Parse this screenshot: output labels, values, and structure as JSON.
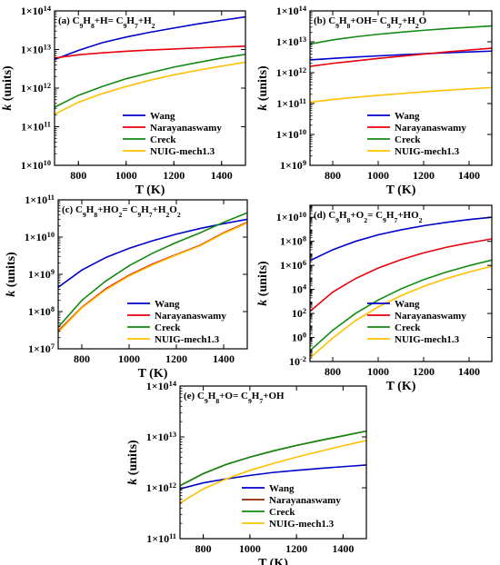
{
  "chart_data": [
    {
      "type": "line",
      "title": "(a) C9H8+H= C9H7+H2",
      "title_parts": [
        "(a) C",
        "9",
        "H",
        "8",
        "+H= C",
        "9",
        "H",
        "7",
        "+H",
        "2"
      ],
      "xlabel": "T (K)",
      "ylabel": "k (units)",
      "ylabel_parts": [
        "k",
        " (units)"
      ],
      "xlim": [
        700,
        1500
      ],
      "ylim": [
        10000000000.0,
        100000000000000.0
      ],
      "yscale": "log",
      "xticks": [
        800,
        1000,
        1200,
        1400
      ],
      "xtick_labels": [
        "800",
        "1000",
        "1200",
        "1400"
      ],
      "yticks": [
        10000000000.0,
        100000000000.0,
        1000000000000.0,
        10000000000000.0,
        100000000000000.0
      ],
      "ytick_labels": [
        [
          "1×10",
          "10"
        ],
        [
          "1×10",
          "11"
        ],
        [
          "1×10",
          "12"
        ],
        [
          "1×10",
          "13"
        ],
        [
          "1×10",
          "14"
        ]
      ],
      "legend_position": "lower-right",
      "grid": false,
      "series": [
        {
          "name": "Wang",
          "color": "#0000cc",
          "x": [
            700,
            800,
            900,
            1000,
            1100,
            1200,
            1300,
            1400,
            1500
          ],
          "y": [
            5500000000000.0,
            9500000000000.0,
            15000000000000.0,
            21000000000000.0,
            28000000000000.0,
            36000000000000.0,
            46000000000000.0,
            57000000000000.0,
            70000000000000.0
          ]
        },
        {
          "name": "Narayanaswamy",
          "color": "#e8000b",
          "x": [
            700,
            800,
            900,
            1000,
            1100,
            1200,
            1300,
            1400,
            1500
          ],
          "y": [
            6000000000000.0,
            7300000000000.0,
            8200000000000.0,
            9000000000000.0,
            9700000000000.0,
            10300000000000.0,
            11000000000000.0,
            11600000000000.0,
            12200000000000.0
          ]
        },
        {
          "name": "Creck",
          "color": "#128a12",
          "x": [
            700,
            800,
            900,
            1000,
            1100,
            1200,
            1300,
            1400,
            1500
          ],
          "y": [
            320000000000.0,
            650000000000.0,
            1100000000000.0,
            1750000000000.0,
            2500000000000.0,
            3500000000000.0,
            4600000000000.0,
            6000000000000.0,
            7500000000000.0
          ]
        },
        {
          "name": "NUIG-mech1.3",
          "color": "#ffc000",
          "x": [
            700,
            800,
            900,
            1000,
            1100,
            1200,
            1300,
            1400,
            1500
          ],
          "y": [
            210000000000.0,
            430000000000.0,
            720000000000.0,
            1100000000000.0,
            1600000000000.0,
            2200000000000.0,
            2900000000000.0,
            3700000000000.0,
            4700000000000.0
          ]
        }
      ]
    },
    {
      "type": "line",
      "title": "(b) C9H8+OH= C9H7+H2O",
      "title_parts": [
        "(b) C",
        "9",
        "H",
        "8",
        "+OH= C",
        "9",
        "H",
        "7",
        "+H",
        "2",
        "O"
      ],
      "xlabel": "T (K)",
      "ylabel": "k (units)",
      "ylabel_parts": [
        "k",
        " (units)"
      ],
      "xlim": [
        700,
        1500
      ],
      "ylim": [
        1000000000.0,
        100000000000000.0
      ],
      "yscale": "log",
      "xticks": [
        800,
        1000,
        1200,
        1400
      ],
      "xtick_labels": [
        "800",
        "1000",
        "1200",
        "1400"
      ],
      "yticks": [
        1000000000.0,
        10000000000.0,
        100000000000.0,
        1000000000000.0,
        10000000000000.0,
        100000000000000.0
      ],
      "ytick_labels": [
        [
          "1×10",
          "9"
        ],
        [
          "1×10",
          "10"
        ],
        [
          "1×10",
          "11"
        ],
        [
          "1×10",
          "12"
        ],
        [
          "1×10",
          "13"
        ],
        [
          "1×10",
          "14"
        ]
      ],
      "legend_position": "lower-right",
      "grid": false,
      "series": [
        {
          "name": "Wang",
          "color": "#0000cc",
          "x": [
            700,
            800,
            900,
            1000,
            1100,
            1200,
            1300,
            1400,
            1500
          ],
          "y": [
            2600000000000.0,
            2900000000000.0,
            3200000000000.0,
            3500000000000.0,
            3800000000000.0,
            4100000000000.0,
            4400000000000.0,
            4700000000000.0,
            5000000000000.0
          ]
        },
        {
          "name": "Narayanaswamy",
          "color": "#e8000b",
          "x": [
            700,
            800,
            900,
            1000,
            1100,
            1200,
            1300,
            1400,
            1500
          ],
          "y": [
            1600000000000.0,
            2000000000000.0,
            2400000000000.0,
            2900000000000.0,
            3400000000000.0,
            4000000000000.0,
            4700000000000.0,
            5400000000000.0,
            6200000000000.0
          ]
        },
        {
          "name": "Creck",
          "color": "#128a12",
          "x": [
            700,
            800,
            900,
            1000,
            1100,
            1200,
            1300,
            1400,
            1500
          ],
          "y": [
            8500000000000.0,
            11500000000000.0,
            14500000000000.0,
            17500000000000.0,
            20500000000000.0,
            23500000000000.0,
            26500000000000.0,
            29500000000000.0,
            32500000000000.0
          ]
        },
        {
          "name": "NUIG-mech1.3",
          "color": "#ffc000",
          "x": [
            700,
            800,
            900,
            1000,
            1100,
            1200,
            1300,
            1400,
            1500
          ],
          "y": [
            110000000000.0,
            135000000000.0,
            160000000000.0,
            185000000000.0,
            210000000000.0,
            240000000000.0,
            270000000000.0,
            300000000000.0,
            330000000000.0
          ]
        }
      ]
    },
    {
      "type": "line",
      "title": "(c) C9H8+HO2= C9H7+H2O2",
      "title_parts": [
        "(c) C",
        "9",
        "H",
        "8",
        "+HO",
        "2",
        "= C",
        "9",
        "H",
        "7",
        "+H",
        "2",
        "O",
        "2"
      ],
      "xlabel": "T (K)",
      "ylabel": "k (units)",
      "ylabel_parts": [
        "k",
        " (units)"
      ],
      "xlim": [
        700,
        1500
      ],
      "ylim": [
        10000000.0,
        100000000000.0
      ],
      "yscale": "log",
      "xticks": [
        800,
        1000,
        1200,
        1400
      ],
      "xtick_labels": [
        "800",
        "1000",
        "1200",
        "1400"
      ],
      "yticks": [
        10000000.0,
        100000000.0,
        1000000000.0,
        10000000000.0,
        100000000000.0
      ],
      "ytick_labels": [
        [
          "1×10",
          "7"
        ],
        [
          "1×10",
          "8"
        ],
        [
          "1×10",
          "9"
        ],
        [
          "1×10",
          "10"
        ],
        [
          "1×10",
          "11"
        ]
      ],
      "legend_position": "lower-right",
      "grid": false,
      "series": [
        {
          "name": "Wang",
          "color": "#0000cc",
          "x": [
            700,
            800,
            900,
            1000,
            1100,
            1200,
            1300,
            1400,
            1500
          ],
          "y": [
            450000000.0,
            1300000000.0,
            2800000000.0,
            5000000000.0,
            8000000000.0,
            12000000000.0,
            17000000000.0,
            23000000000.0,
            30000000000.0
          ]
        },
        {
          "name": "Narayanaswamy",
          "color": "#e8000b",
          "x": [
            700,
            800,
            900,
            1000,
            1100,
            1200,
            1300,
            1400,
            1500
          ],
          "y": [
            30000000.0,
            130000000.0,
            400000000.0,
            950000000.0,
            1900000000.0,
            3400000000.0,
            6000000000.0,
            13000000000.0,
            25000000000.0
          ]
        },
        {
          "name": "Creck",
          "color": "#128a12",
          "x": [
            700,
            800,
            900,
            1000,
            1100,
            1200,
            1300,
            1400,
            1500
          ],
          "y": [
            38000000.0,
            200000000.0,
            650000000.0,
            1700000000.0,
            3700000000.0,
            7200000000.0,
            13000000000.0,
            25000000000.0,
            45000000000.0
          ]
        },
        {
          "name": "NUIG-mech1.3",
          "color": "#ffc000",
          "x": [
            700,
            800,
            900,
            1000,
            1100,
            1200,
            1300,
            1400,
            1500
          ],
          "y": [
            28000000.0,
            125000000.0,
            380000000.0,
            900000000.0,
            1800000000.0,
            3300000000.0,
            5800000000.0,
            12500000000.0,
            24000000000.0
          ]
        }
      ]
    },
    {
      "type": "line",
      "title": "(d) C9H8+O2= C9H7+HO2",
      "title_parts": [
        "(d) C",
        "9",
        "H",
        "8",
        "+O",
        "2",
        "= C",
        "9",
        "H",
        "7",
        "+HO",
        "2"
      ],
      "xlabel": "T (K)",
      "ylabel": "k (units)",
      "ylabel_parts": [
        "k",
        " (units)"
      ],
      "xlim": [
        700,
        1500
      ],
      "ylim": [
        0.01,
        100000000000.0
      ],
      "yscale": "log",
      "xticks": [
        800,
        1000,
        1200,
        1400
      ],
      "xtick_labels": [
        "800",
        "1000",
        "1200",
        "1400"
      ],
      "yticks": [
        0.01,
        1,
        100.0,
        10000.0,
        1000000.0,
        100000000.0,
        10000000000.0
      ],
      "ytick_labels": [
        [
          "10",
          "-2"
        ],
        [
          "10",
          "0"
        ],
        [
          "10",
          "2"
        ],
        [
          "10",
          "4"
        ],
        [
          "1×10",
          "6"
        ],
        [
          "1×10",
          "8"
        ],
        [
          "1×10",
          "10"
        ]
      ],
      "legend_position": "lower-right",
      "grid": false,
      "series": [
        {
          "name": "Wang",
          "color": "#0000cc",
          "x": [
            700,
            800,
            900,
            1000,
            1100,
            1200,
            1300,
            1400,
            1500
          ],
          "y": [
            2500000.0,
            20000000.0,
            100000000.0,
            350000000.0,
            900000000.0,
            2000000000.0,
            3800000000.0,
            6500000000.0,
            10000000000.0
          ]
        },
        {
          "name": "Narayanaswamy",
          "color": "#e8000b",
          "x": [
            700,
            800,
            900,
            1000,
            1100,
            1200,
            1300,
            1400,
            1500
          ],
          "y": [
            150.0,
            6000.0,
            80000.0,
            600000.0,
            3000000.0,
            11000000.0,
            32000000.0,
            75000000.0,
            160000000.0
          ]
        },
        {
          "name": "Creck",
          "color": "#128a12",
          "x": [
            700,
            800,
            900,
            1000,
            1100,
            1200,
            1300,
            1400,
            1500
          ],
          "y": [
            0.08,
            4.0,
            100.0,
            1300.0,
            11000.0,
            65000.0,
            280000.0,
            950000.0,
            2800000.0
          ]
        },
        {
          "name": "NUIG-mech1.3",
          "color": "#ffc000",
          "x": [
            700,
            800,
            900,
            1000,
            1100,
            1200,
            1300,
            1400,
            1500
          ],
          "y": [
            0.02,
            0.9,
            25.0,
            350.0,
            3000.0,
            18000.0,
            80000.0,
            280000.0,
            850000.0
          ]
        }
      ]
    },
    {
      "type": "line",
      "title": "(e) C9H8+O= C9H7+OH",
      "title_parts": [
        "(e) C",
        "9",
        "H",
        "8",
        "+O= C",
        "9",
        "H",
        "7",
        "+OH"
      ],
      "xlabel": "T (K)",
      "ylabel": "k (units)",
      "ylabel_parts": [
        "k",
        " (units)"
      ],
      "xlim": [
        700,
        1500
      ],
      "ylim": [
        100000000000.0,
        100000000000000.0
      ],
      "yscale": "log",
      "xticks": [
        800,
        1000,
        1200,
        1400
      ],
      "xtick_labels": [
        "800",
        "1000",
        "1200",
        "1400"
      ],
      "yticks": [
        100000000000.0,
        1000000000000.0,
        10000000000000.0,
        100000000000000.0
      ],
      "ytick_labels": [
        [
          "1×10",
          "11"
        ],
        [
          "1×10",
          "12"
        ],
        [
          "1×10",
          "13"
        ],
        [
          "1×10",
          "14"
        ]
      ],
      "legend_position": "lower-right",
      "grid": false,
      "series": [
        {
          "name": "Wang",
          "color": "#0000cc",
          "x": [
            700,
            800,
            900,
            1000,
            1100,
            1200,
            1300,
            1400,
            1500
          ],
          "y": [
            950000000000.0,
            1250000000000.0,
            1500000000000.0,
            1750000000000.0,
            2000000000000.0,
            2200000000000.0,
            2400000000000.0,
            2600000000000.0,
            2800000000000.0
          ]
        },
        {
          "name": "Narayanaswamy",
          "color": "#8b2500",
          "x": [
            700,
            800,
            900,
            1000,
            1100,
            1200,
            1300,
            1400,
            1500
          ],
          "y": [
            1100000000000.0,
            1900000000000.0,
            2900000000000.0,
            4000000000000.0,
            5300000000000.0,
            6800000000000.0,
            8500000000000.0,
            10500000000000.0,
            13000000000000.0
          ]
        },
        {
          "name": "Creck",
          "color": "#128a12",
          "x": [
            700,
            800,
            900,
            1000,
            1100,
            1200,
            1300,
            1400,
            1500
          ],
          "y": [
            1100000000000.0,
            1900000000000.0,
            2900000000000.0,
            4000000000000.0,
            5300000000000.0,
            6800000000000.0,
            8500000000000.0,
            10500000000000.0,
            13000000000000.0
          ]
        },
        {
          "name": "NUIG-mech1.3",
          "color": "#ffc000",
          "x": [
            700,
            800,
            900,
            1000,
            1100,
            1200,
            1300,
            1400,
            1500
          ],
          "y": [
            500000000000.0,
            950000000000.0,
            1500000000000.0,
            2200000000000.0,
            3000000000000.0,
            4000000000000.0,
            5200000000000.0,
            6700000000000.0,
            8500000000000.0
          ]
        }
      ]
    }
  ]
}
